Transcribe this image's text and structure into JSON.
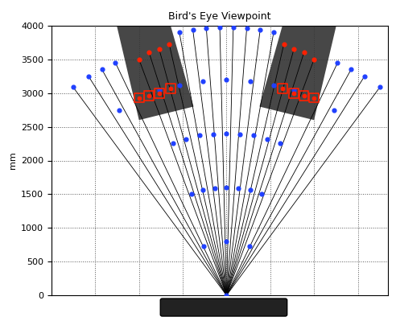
{
  "chart_data": {
    "type": "scatter",
    "title": "Bird's Eye Viewpoint",
    "y_label": "mm",
    "xlim": [
      -2600,
      2400
    ],
    "ylim": [
      0,
      4000
    ],
    "xticks": [
      -1950,
      -1300,
      -650,
      0,
      650,
      1300,
      1950
    ],
    "yticks": [
      0,
      500,
      1000,
      1500,
      2000,
      2500,
      3000,
      3500,
      4000
    ],
    "tick_labels": "y",
    "grid": true,
    "obstacles": [
      {
        "color": "#333333",
        "x": [
          -1630,
          -830,
          -490,
          -1300
        ],
        "y": [
          4000,
          4000,
          2800,
          2600
        ]
      },
      {
        "color": "#333333",
        "x": [
          830,
          1630,
          1300,
          490
        ],
        "y": [
          4000,
          4000,
          2600,
          2800
        ]
      }
    ],
    "series": [
      {
        "type": "rays",
        "color": "#000000",
        "origin": [
          0,
          0
        ],
        "x": [
          -2280,
          -2050,
          -1850,
          -1650,
          -1300,
          -1150,
          -1000,
          -850,
          -700,
          -500,
          -300,
          -100,
          100,
          300,
          500,
          700,
          850,
          1000,
          1150,
          1300,
          1650,
          1850,
          2050,
          2280
        ],
        "y": [
          3090,
          3250,
          3350,
          3450,
          3500,
          3600,
          3650,
          3720,
          3900,
          3940,
          3960,
          3980,
          3980,
          3960,
          3940,
          3900,
          3720,
          3650,
          3600,
          3500,
          3450,
          3350,
          3250,
          3090
        ]
      },
      {
        "type": "scatter",
        "color": "#2040ff",
        "marker": "circle",
        "x": [
          0,
          -340,
          0,
          340,
          -520,
          -350,
          -175,
          0,
          175,
          350,
          520,
          -800,
          -600,
          -400,
          -200,
          0,
          200,
          400,
          600,
          800,
          -1600,
          -1000,
          -700,
          -350,
          0,
          350,
          700,
          1000,
          1600,
          -2280,
          -2050,
          -1850,
          -1650,
          -700,
          -500,
          -300,
          -100,
          100,
          300,
          500,
          700,
          1650,
          1850,
          2050,
          2280
        ],
        "y": [
          0,
          725,
          800,
          725,
          1510,
          1560,
          1590,
          1600,
          1590,
          1560,
          1510,
          2260,
          2320,
          2370,
          2390,
          2400,
          2390,
          2370,
          2320,
          2260,
          2750,
          3040,
          3120,
          3180,
          3200,
          3180,
          3120,
          3040,
          2750,
          3090,
          3250,
          3350,
          3450,
          3900,
          3940,
          3960,
          3980,
          3980,
          3960,
          3940,
          3900,
          3450,
          3350,
          3250,
          3090
        ]
      },
      {
        "type": "scatter",
        "color": "#ff2000",
        "marker": "circle",
        "x": [
          -1300,
          -1150,
          -1000,
          -850,
          850,
          1000,
          1150,
          1300
        ],
        "y": [
          3500,
          3600,
          3650,
          3720,
          3720,
          3650,
          3600,
          3500
        ]
      },
      {
        "type": "scatter",
        "color": "#ff2000",
        "marker": "square",
        "x": [
          -1300,
          -1150,
          -1000,
          -830,
          830,
          1000,
          1150,
          1300
        ],
        "y": [
          2930,
          2960,
          3000,
          3070,
          3070,
          3000,
          2960,
          2930
        ]
      }
    ]
  }
}
